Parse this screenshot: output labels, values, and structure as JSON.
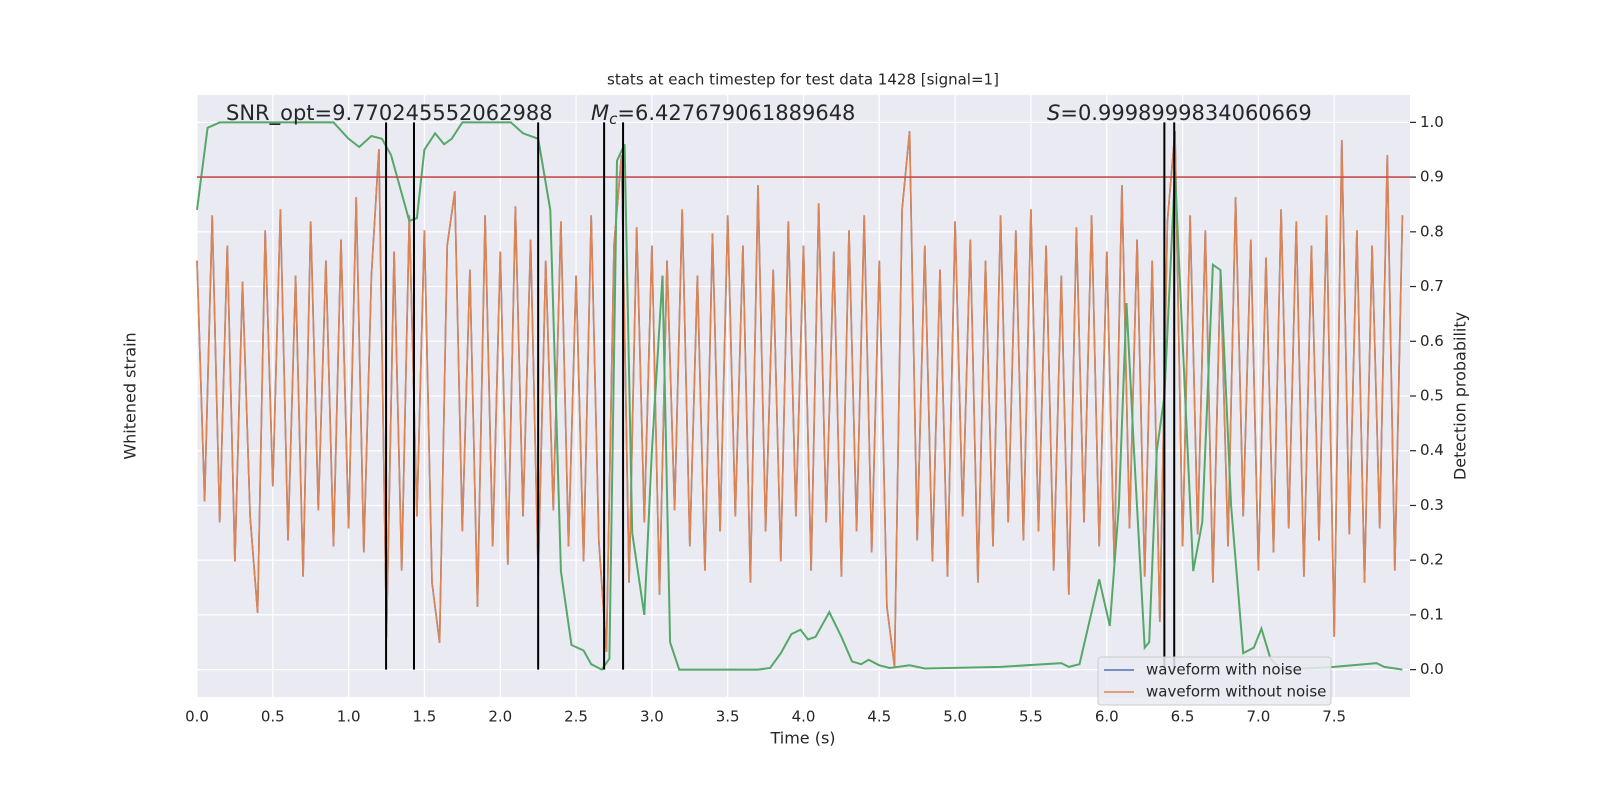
{
  "chart_data": {
    "type": "line",
    "title": "stats at each timestep for test data 1428 [signal=1]",
    "xlabel": "Time (s)",
    "ylabel": "Whitened strain",
    "y2label": "Detection probability",
    "x": [
      0,
      0.05,
      0.1,
      0.15,
      0.2,
      0.25,
      0.3,
      0.35,
      0.4,
      0.45,
      0.5,
      0.55,
      0.6,
      0.65,
      0.7,
      0.75,
      0.8,
      0.85,
      0.9,
      0.95,
      1,
      1.05,
      1.1,
      1.15,
      1.2,
      1.25,
      1.3,
      1.35,
      1.4,
      1.45,
      1.5,
      1.55,
      1.6,
      1.65,
      1.7,
      1.75,
      1.8,
      1.85,
      1.9,
      1.95,
      2,
      2.05,
      2.1,
      2.15,
      2.2,
      2.25,
      2.3,
      2.35,
      2.4,
      2.45,
      2.5,
      2.55,
      2.6,
      2.65,
      2.7,
      2.75,
      2.8,
      2.85,
      2.9,
      2.95,
      3,
      3.05,
      3.1,
      3.15,
      3.2,
      3.25,
      3.3,
      3.35,
      3.4,
      3.45,
      3.5,
      3.55,
      3.6,
      3.65,
      3.7,
      3.75,
      3.8,
      3.85,
      3.9,
      3.95,
      4,
      4.05,
      4.1,
      4.15,
      4.2,
      4.25,
      4.3,
      4.35,
      4.4,
      4.45,
      4.5,
      4.55,
      4.6,
      4.65,
      4.7,
      4.75,
      4.8,
      4.85,
      4.9,
      4.95,
      5,
      5.05,
      5.1,
      5.15,
      5.2,
      5.25,
      5.3,
      5.35,
      5.4,
      5.45,
      5.5,
      5.55,
      5.6,
      5.65,
      5.7,
      5.75,
      5.8,
      5.85,
      5.9,
      5.95,
      6,
      6.05,
      6.1,
      6.15,
      6.2,
      6.25,
      6.3,
      6.35,
      6.4,
      6.45,
      6.5,
      6.55,
      6.6,
      6.65,
      6.7,
      6.75,
      6.8,
      6.85,
      6.9,
      6.95,
      7,
      7.05,
      7.1,
      7.15,
      7.2,
      7.25,
      7.3,
      7.35,
      7.4,
      7.45,
      7.5,
      7.55,
      7.6,
      7.65,
      7.7,
      7.75,
      7.8,
      7.85,
      7.9,
      7.95
    ],
    "xlim": [
      0,
      8
    ],
    "xticks": [
      {
        "value": 0,
        "label": "0.0"
      },
      0.5,
      {
        "value": 1,
        "label": "1.0"
      },
      1.5,
      {
        "value": 2,
        "label": "2.0"
      },
      2.5,
      {
        "value": 3,
        "label": "3.0"
      },
      3.5,
      {
        "value": 4,
        "label": "4.0"
      },
      4.5,
      {
        "value": 5,
        "label": "5.0"
      },
      5.5,
      {
        "value": 6,
        "label": "6.0"
      },
      6.5,
      {
        "value": 7,
        "label": "7.0"
      },
      7.5
    ],
    "ylim": [
      -1,
      1
    ],
    "y2lim": [
      -0.05,
      1.05
    ],
    "y2ticks": [
      {
        "value": 0,
        "label": "0.0"
      },
      0.1,
      0.2,
      0.3,
      0.4,
      0.5,
      0.6,
      0.7,
      0.8,
      0.9,
      {
        "value": 1,
        "label": "1.0"
      }
    ],
    "grid": true,
    "legend": "lower right",
    "series": [
      {
        "name": "waveform with noise",
        "color": "#4c72b0",
        "axis": "y",
        "values": [
          0.45,
          -0.35,
          0.6,
          -0.42,
          0.5,
          -0.55,
          0.38,
          -0.4,
          -0.72,
          0.55,
          -0.3,
          0.62,
          -0.48,
          0.4,
          -0.6,
          0.58,
          -0.38,
          0.45,
          -0.5,
          0.52,
          -0.44,
          0.66,
          -0.52,
          0.4,
          0.82,
          -0.8,
          0.48,
          -0.58,
          0.6,
          -0.4,
          0.55,
          -0.62,
          -0.82,
          0.5,
          0.68,
          -0.45,
          0.42,
          -0.7,
          0.6,
          -0.5,
          0.48,
          -0.56,
          0.63,
          -0.4,
          0.52,
          -0.6,
          0.45,
          -0.38,
          0.58,
          -0.5,
          0.4,
          -0.55,
          0.6,
          -0.48,
          -0.85,
          0.5,
          0.8,
          -0.62,
          0.56,
          -0.42,
          0.5,
          -0.66,
          0.45,
          -0.38,
          0.62,
          -0.5,
          0.4,
          -0.58,
          0.54,
          -0.45,
          0.6,
          -0.4,
          0.5,
          -0.62,
          0.7,
          -0.45,
          0.42,
          -0.55,
          0.58,
          -0.4,
          0.5,
          -0.58,
          0.64,
          -0.42,
          0.48,
          -0.6,
          0.55,
          -0.45,
          0.6,
          -0.52,
          0.45,
          -0.7,
          -0.9,
          0.62,
          0.88,
          -0.48,
          0.5,
          -0.55,
          0.42,
          -0.6,
          0.58,
          -0.4,
          0.52,
          -0.62,
          0.45,
          -0.5,
          0.6,
          -0.42,
          0.55,
          -0.48,
          0.62,
          -0.45,
          0.5,
          -0.58,
          0.4,
          -0.66,
          0.56,
          -0.42,
          0.6,
          -0.5,
          0.48,
          -0.56,
          0.7,
          -0.44,
          0.52,
          -0.6,
          0.45,
          -0.75,
          0.58,
          0.88,
          -0.5,
          0.6,
          -0.46,
          0.55,
          -0.62,
          0.42,
          -0.5,
          0.66,
          -0.4,
          0.52,
          -0.58,
          0.46,
          -0.52,
          0.62,
          -0.44,
          0.58,
          -0.6,
          0.5,
          -0.48,
          0.6,
          -0.8,
          0.85,
          -0.46,
          0.55,
          -0.62,
          0.5,
          -0.44,
          0.8,
          -0.58,
          0.6
        ]
      },
      {
        "name": "waveform without noise",
        "color": "#dd8452",
        "axis": "y",
        "values": [
          0.45,
          -0.35,
          0.6,
          -0.42,
          0.5,
          -0.55,
          0.38,
          -0.4,
          -0.72,
          0.55,
          -0.3,
          0.62,
          -0.48,
          0.4,
          -0.6,
          0.58,
          -0.38,
          0.45,
          -0.5,
          0.52,
          -0.44,
          0.66,
          -0.52,
          0.4,
          0.82,
          -0.8,
          0.48,
          -0.58,
          0.6,
          -0.4,
          0.55,
          -0.62,
          -0.82,
          0.5,
          0.68,
          -0.45,
          0.42,
          -0.7,
          0.6,
          -0.5,
          0.48,
          -0.56,
          0.63,
          -0.4,
          0.52,
          -0.6,
          0.45,
          -0.38,
          0.58,
          -0.5,
          0.4,
          -0.55,
          0.6,
          -0.48,
          -0.85,
          0.5,
          0.8,
          -0.62,
          0.56,
          -0.42,
          0.5,
          -0.66,
          0.45,
          -0.38,
          0.62,
          -0.5,
          0.4,
          -0.58,
          0.54,
          -0.45,
          0.6,
          -0.4,
          0.5,
          -0.62,
          0.7,
          -0.45,
          0.42,
          -0.55,
          0.58,
          -0.4,
          0.5,
          -0.58,
          0.64,
          -0.42,
          0.48,
          -0.6,
          0.55,
          -0.45,
          0.6,
          -0.52,
          0.45,
          -0.7,
          -0.9,
          0.62,
          0.88,
          -0.48,
          0.5,
          -0.55,
          0.42,
          -0.6,
          0.58,
          -0.4,
          0.52,
          -0.62,
          0.45,
          -0.5,
          0.6,
          -0.42,
          0.55,
          -0.48,
          0.62,
          -0.45,
          0.5,
          -0.58,
          0.4,
          -0.66,
          0.56,
          -0.42,
          0.6,
          -0.5,
          0.48,
          -0.56,
          0.7,
          -0.44,
          0.52,
          -0.6,
          0.45,
          -0.75,
          0.58,
          0.88,
          -0.5,
          0.6,
          -0.46,
          0.55,
          -0.62,
          0.42,
          -0.5,
          0.66,
          -0.4,
          0.52,
          -0.58,
          0.46,
          -0.52,
          0.62,
          -0.44,
          0.58,
          -0.6,
          0.5,
          -0.48,
          0.6,
          -0.8,
          0.85,
          -0.46,
          0.55,
          -0.62,
          0.5,
          -0.44,
          0.8,
          -0.58,
          0.6
        ]
      },
      {
        "color": "#55a868",
        "axis": "y2",
        "x": [
          0,
          0.07,
          0.15,
          0.9,
          1.0,
          1.07,
          1.15,
          1.22,
          1.28,
          1.33,
          1.4,
          1.45,
          1.5,
          1.57,
          1.63,
          1.68,
          1.75,
          2.07,
          2.15,
          2.25,
          2.33,
          2.4,
          2.47,
          2.55,
          2.6,
          2.67,
          2.72,
          2.77,
          2.82,
          2.87,
          2.95,
          3.0,
          3.07,
          3.12,
          3.18,
          3.7,
          3.78,
          3.85,
          3.92,
          3.98,
          4.03,
          4.08,
          4.17,
          4.25,
          4.32,
          4.38,
          4.43,
          4.5,
          4.57,
          4.7,
          4.8,
          5.3,
          5.7,
          5.75,
          5.82,
          5.95,
          6.02,
          6.08,
          6.13,
          6.18,
          6.25,
          6.28,
          6.33,
          6.38,
          6.45,
          6.5,
          6.57,
          6.63,
          6.7,
          6.75,
          6.82,
          6.9,
          6.97,
          7.02,
          7.08,
          7.15,
          7.5,
          7.78,
          7.83,
          7.95
        ],
        "values": [
          0.84,
          0.99,
          1.0,
          1.0,
          0.97,
          0.955,
          0.975,
          0.97,
          0.94,
          0.89,
          0.82,
          0.825,
          0.95,
          0.98,
          0.96,
          0.97,
          1.0,
          1.0,
          0.98,
          0.97,
          0.84,
          0.18,
          0.045,
          0.035,
          0.01,
          0.0,
          0.02,
          0.93,
          0.96,
          0.25,
          0.1,
          0.4,
          0.72,
          0.05,
          0.0,
          0.0,
          0.003,
          0.03,
          0.065,
          0.073,
          0.055,
          0.06,
          0.105,
          0.06,
          0.015,
          0.01,
          0.018,
          0.008,
          0.003,
          0.008,
          0.002,
          0.005,
          0.012,
          0.005,
          0.01,
          0.165,
          0.08,
          0.3,
          0.67,
          0.4,
          0.04,
          0.05,
          0.4,
          0.5,
          0.91,
          0.6,
          0.18,
          0.27,
          0.74,
          0.73,
          0.3,
          0.03,
          0.04,
          0.075,
          0.02,
          0.0,
          0.005,
          0.012,
          0.005,
          0.0
        ]
      }
    ],
    "threshold": {
      "value": 0.9,
      "color": "#c44e52"
    },
    "vlines": {
      "x": [
        1.247,
        1.431,
        2.25,
        2.685,
        2.81,
        6.38,
        6.445
      ],
      "color": "#000000"
    },
    "annotations": [
      {
        "text": "SNR_opt=9.770245552062988"
      },
      {
        "symbol": "M",
        "subscript": "c",
        "text": "=6.427679061889648"
      },
      {
        "symbol": "S",
        "text": "=0.9998999834060669"
      }
    ]
  }
}
